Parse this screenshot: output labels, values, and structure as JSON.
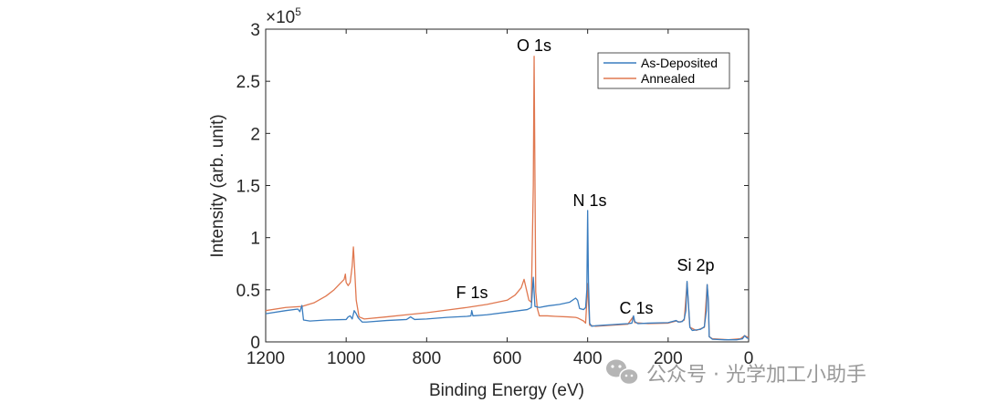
{
  "chart_data": {
    "type": "line",
    "title": "",
    "xlabel": "Binding Energy (eV)",
    "ylabel": "Intensity (arb. unit)",
    "xlim": [
      1200,
      0
    ],
    "x_reversed": true,
    "ylim": [
      0,
      300000
    ],
    "x_ticks": [
      1200,
      1000,
      800,
      600,
      400,
      200,
      0
    ],
    "x_tick_labels": [
      "1200",
      "1000",
      "800",
      "600",
      "400",
      "200",
      "0"
    ],
    "y_ticks": [
      0,
      50000,
      100000,
      150000,
      200000,
      250000,
      300000
    ],
    "y_tick_labels": [
      "0",
      "0.5",
      "1",
      "1.5",
      "2",
      "2.5",
      "3"
    ],
    "y_multiplier_base": "×10",
    "y_multiplier_exp": "5",
    "grid": false,
    "legend_position": "top-right",
    "series": [
      {
        "name": "As-Deposited",
        "color": "#3A7DBF",
        "points": [
          [
            1200,
            27000
          ],
          [
            1150,
            30000
          ],
          [
            1120,
            31500
          ],
          [
            1115,
            29000
          ],
          [
            1110,
            35000
          ],
          [
            1106,
            21000
          ],
          [
            1090,
            20000
          ],
          [
            1050,
            21000
          ],
          [
            1000,
            21500
          ],
          [
            995,
            24000
          ],
          [
            990,
            25000
          ],
          [
            985,
            22000
          ],
          [
            980,
            30000
          ],
          [
            975,
            27000
          ],
          [
            970,
            23000
          ],
          [
            960,
            19000
          ],
          [
            950,
            19000
          ],
          [
            900,
            20500
          ],
          [
            850,
            21500
          ],
          [
            840,
            24000
          ],
          [
            830,
            21500
          ],
          [
            800,
            22000
          ],
          [
            750,
            23500
          ],
          [
            700,
            24500
          ],
          [
            690,
            25000
          ],
          [
            688,
            30000
          ],
          [
            685,
            25000
          ],
          [
            650,
            26000
          ],
          [
            600,
            28500
          ],
          [
            550,
            31000
          ],
          [
            540,
            33000
          ],
          [
            535,
            62000
          ],
          [
            531,
            34000
          ],
          [
            520,
            33000
          ],
          [
            500,
            34500
          ],
          [
            470,
            36000
          ],
          [
            445,
            38000
          ],
          [
            430,
            42000
          ],
          [
            425,
            40000
          ],
          [
            420,
            32000
          ],
          [
            410,
            31000
          ],
          [
            405,
            33000
          ],
          [
            402,
            50000
          ],
          [
            400,
            126000
          ],
          [
            398,
            58000
          ],
          [
            395,
            18000
          ],
          [
            390,
            15000
          ],
          [
            380,
            15500
          ],
          [
            360,
            16000
          ],
          [
            340,
            16500
          ],
          [
            320,
            17000
          ],
          [
            300,
            17500
          ],
          [
            290,
            18000
          ],
          [
            286,
            25000
          ],
          [
            283,
            19500
          ],
          [
            275,
            17500
          ],
          [
            250,
            18000
          ],
          [
            200,
            18500
          ],
          [
            180,
            20500
          ],
          [
            175,
            19000
          ],
          [
            165,
            19500
          ],
          [
            160,
            22000
          ],
          [
            156,
            30000
          ],
          [
            153,
            58000
          ],
          [
            150,
            40000
          ],
          [
            146,
            14000
          ],
          [
            140,
            11000
          ],
          [
            130,
            11500
          ],
          [
            120,
            12000
          ],
          [
            110,
            14500
          ],
          [
            105,
            30000
          ],
          [
            103,
            55000
          ],
          [
            100,
            40000
          ],
          [
            98,
            5000
          ],
          [
            90,
            2500
          ],
          [
            60,
            2000
          ],
          [
            30,
            2000
          ],
          [
            15,
            3000
          ],
          [
            10,
            6000
          ],
          [
            5,
            4000
          ],
          [
            0,
            3000
          ]
        ]
      },
      {
        "name": "Annealed",
        "color": "#E07850",
        "points": [
          [
            1200,
            30000
          ],
          [
            1150,
            33000
          ],
          [
            1110,
            34000
          ],
          [
            1080,
            37500
          ],
          [
            1050,
            44000
          ],
          [
            1030,
            50000
          ],
          [
            1015,
            56000
          ],
          [
            1005,
            60000
          ],
          [
            1002,
            65000
          ],
          [
            1000,
            57000
          ],
          [
            995,
            54000
          ],
          [
            990,
            57000
          ],
          [
            985,
            73000
          ],
          [
            982,
            91000
          ],
          [
            979,
            70000
          ],
          [
            975,
            40000
          ],
          [
            968,
            24000
          ],
          [
            955,
            22000
          ],
          [
            900,
            24000
          ],
          [
            850,
            26000
          ],
          [
            800,
            28000
          ],
          [
            750,
            30500
          ],
          [
            700,
            33000
          ],
          [
            650,
            36000
          ],
          [
            600,
            40000
          ],
          [
            580,
            45000
          ],
          [
            565,
            52000
          ],
          [
            558,
            60000
          ],
          [
            552,
            50000
          ],
          [
            546,
            40000
          ],
          [
            540,
            38000
          ],
          [
            535,
            150000
          ],
          [
            533,
            274000
          ],
          [
            531,
            160000
          ],
          [
            529,
            48000
          ],
          [
            525,
            32000
          ],
          [
            520,
            25000
          ],
          [
            500,
            25000
          ],
          [
            480,
            24500
          ],
          [
            450,
            24000
          ],
          [
            430,
            23500
          ],
          [
            425,
            23000
          ],
          [
            420,
            22000
          ],
          [
            410,
            20000
          ],
          [
            405,
            18000
          ],
          [
            402,
            40000
          ],
          [
            400,
            56000
          ],
          [
            398,
            38000
          ],
          [
            395,
            16000
          ],
          [
            380,
            15000
          ],
          [
            340,
            16000
          ],
          [
            300,
            17000
          ],
          [
            287,
            24000
          ],
          [
            283,
            18500
          ],
          [
            250,
            17500
          ],
          [
            200,
            18000
          ],
          [
            180,
            20000
          ],
          [
            170,
            19000
          ],
          [
            160,
            21000
          ],
          [
            153,
            57000
          ],
          [
            150,
            38000
          ],
          [
            146,
            14000
          ],
          [
            130,
            11000
          ],
          [
            110,
            14000
          ],
          [
            103,
            55000
          ],
          [
            100,
            38000
          ],
          [
            98,
            5000
          ],
          [
            90,
            3000
          ],
          [
            50,
            2000
          ],
          [
            20,
            3000
          ],
          [
            10,
            6000
          ],
          [
            5,
            5000
          ],
          [
            0,
            4000
          ]
        ]
      }
    ],
    "annotations": [
      {
        "text": "O 1s",
        "x": 533,
        "y": 275000
      },
      {
        "text": "N 1s",
        "x": 400,
        "y": 127000
      },
      {
        "text": "F 1s",
        "x": 688,
        "y": 40000
      },
      {
        "text": "C 1s",
        "x": 283,
        "y": 25000
      },
      {
        "text": "Si 2p",
        "x": 128,
        "y": 63000
      }
    ]
  },
  "watermark": {
    "brand_icon": "wechat-icon",
    "text": "公众号 · 光学加工小助手"
  }
}
